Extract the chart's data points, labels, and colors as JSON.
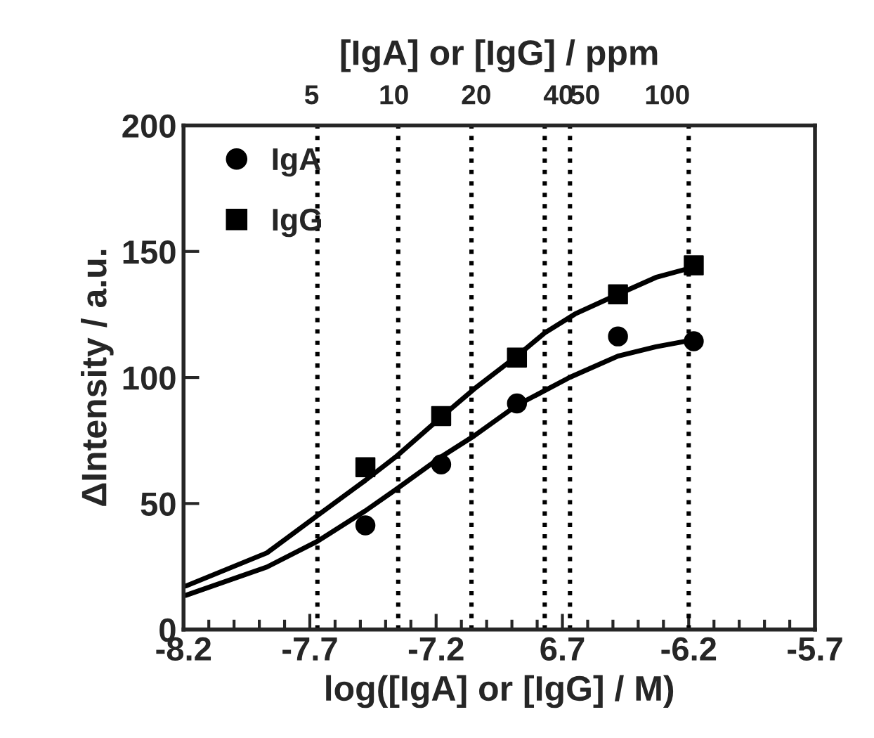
{
  "chart_data": {
    "type": "scatter",
    "xlabel": "log([IgA] or [IgG] / M)",
    "ylabel": "ΔIntensity / a.u.",
    "x2label": "[IgA] or [IgG] / ppm",
    "xlim": [
      -8.2,
      -5.7
    ],
    "xticks": [
      -8.2,
      -7.7,
      -7.2,
      {
        "value": -6.7,
        "label": "6.7"
      },
      -6.2,
      -5.7
    ],
    "x2lim": [
      1.7,
      347
    ],
    "x2ticks": [
      5,
      10,
      20,
      40,
      50,
      100
    ],
    "log": "x2",
    "ylim": [
      0,
      200
    ],
    "yticks": [
      0,
      50,
      100,
      150,
      200
    ],
    "ref_lines": [
      {
        "axis": "x",
        "value": -7.67,
        "label": null,
        "line_style": "dotted"
      },
      {
        "axis": "x",
        "value": -7.35,
        "label": null,
        "line_style": "dotted"
      },
      {
        "axis": "x",
        "value": -7.06,
        "label": null,
        "line_style": "dotted"
      },
      {
        "axis": "x",
        "value": -6.77,
        "label": null,
        "line_style": "dotted"
      },
      {
        "axis": "x",
        "value": -6.67,
        "label": null,
        "line_style": "dotted"
      },
      {
        "axis": "x",
        "value": -6.2,
        "label": null,
        "line_style": "dotted"
      }
    ],
    "legend": "top left",
    "grid": false,
    "series": [
      {
        "name": "IgA",
        "marker": "circle",
        "color": "#000000",
        "x": [
          -7.48,
          -7.18,
          -6.88,
          -6.48,
          -6.18
        ],
        "values": [
          41.3,
          65.5,
          89.7,
          116.3,
          114.4
        ]
      },
      {
        "name": "IgG",
        "marker": "square",
        "color": "#000000",
        "x": [
          -7.48,
          -7.18,
          -6.88,
          -6.48,
          -6.18
        ],
        "values": [
          64.4,
          84.7,
          107.9,
          133.0,
          144.5
        ]
      },
      {
        "type": "line",
        "line_style": "solid",
        "color": "#000000",
        "x": [
          -8.19,
          -7.87,
          -7.67,
          -7.48,
          -7.36,
          -7.18,
          -7.05,
          -6.88,
          -6.67,
          -6.48,
          -6.33,
          -6.18
        ],
        "values": [
          13.6,
          24.8,
          35.0,
          47.1,
          55.5,
          68.5,
          76.8,
          89.0,
          100.1,
          108.5,
          112.2,
          115.0
        ]
      },
      {
        "type": "line",
        "line_style": "solid",
        "color": "#000000",
        "x": [
          -8.19,
          -7.87,
          -7.67,
          -7.48,
          -7.36,
          -7.18,
          -7.05,
          -6.88,
          -6.77,
          -6.65,
          -6.48,
          -6.33,
          -6.18
        ],
        "values": [
          17.3,
          30.4,
          45.2,
          59.2,
          68.5,
          84.3,
          95.4,
          108.5,
          117.7,
          125.2,
          133.0,
          139.7,
          143.8
        ]
      }
    ]
  }
}
